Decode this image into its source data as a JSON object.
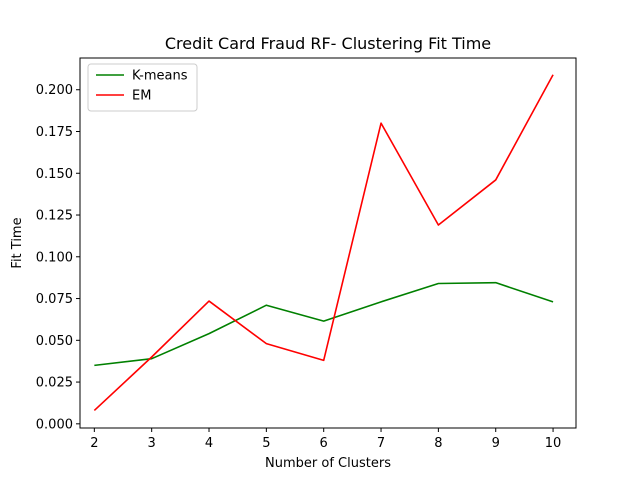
{
  "chart_data": {
    "type": "line",
    "title": "Credit Card Fraud RF- Clustering Fit Time",
    "xlabel": "Number of Clusters",
    "ylabel": "Fit Time",
    "x": [
      2,
      3,
      4,
      5,
      6,
      7,
      8,
      9,
      10
    ],
    "xlim": [
      1.75,
      10.4
    ],
    "ylim": [
      -0.0025,
      0.219
    ],
    "xticks": [
      "2",
      "3",
      "4",
      "5",
      "6",
      "7",
      "8",
      "9",
      "10"
    ],
    "yticks": [
      "0.000",
      "0.025",
      "0.050",
      "0.075",
      "0.100",
      "0.125",
      "0.150",
      "0.175",
      "0.200"
    ],
    "grid": false,
    "legend_position": "upper-left",
    "series": [
      {
        "name": "K-means",
        "color": "#008000",
        "values": [
          0.035,
          0.039,
          0.054,
          0.071,
          0.0615,
          0.073,
          0.084,
          0.0845,
          0.073
        ]
      },
      {
        "name": "EM",
        "color": "#ff0000",
        "values": [
          0.008,
          0.04,
          0.0735,
          0.048,
          0.038,
          0.18,
          0.119,
          0.146,
          0.209
        ]
      }
    ]
  }
}
